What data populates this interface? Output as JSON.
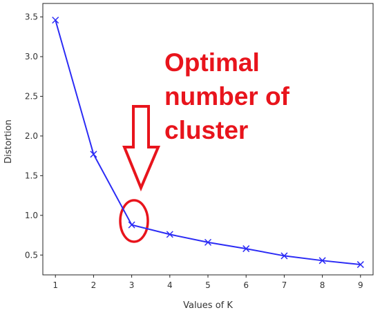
{
  "chart_data": {
    "type": "line",
    "x_label": "Values of K",
    "y_label": "Distortion",
    "x": [
      1,
      2,
      3,
      4,
      5,
      6,
      7,
      8,
      9
    ],
    "series": [
      {
        "color": "#2b2bf5",
        "marker": "x",
        "values": [
          3.46,
          1.77,
          0.88,
          0.76,
          0.66,
          0.58,
          0.49,
          0.43,
          0.38
        ]
      }
    ],
    "xlim": [
      0.67,
      9.33
    ],
    "xticks": [
      1,
      2,
      3,
      4,
      5,
      6,
      7,
      8,
      9
    ],
    "ylim": [
      0.25,
      3.67
    ],
    "yticks": [
      0.5,
      {
        "value": 1,
        "label": "1.0"
      },
      1.5,
      {
        "value": 2,
        "label": "2.0"
      },
      2.5,
      {
        "value": 3,
        "label": "3.0"
      },
      3.5
    ],
    "annotation": [
      "Optimal",
      "number of",
      "cluster"
    ]
  }
}
